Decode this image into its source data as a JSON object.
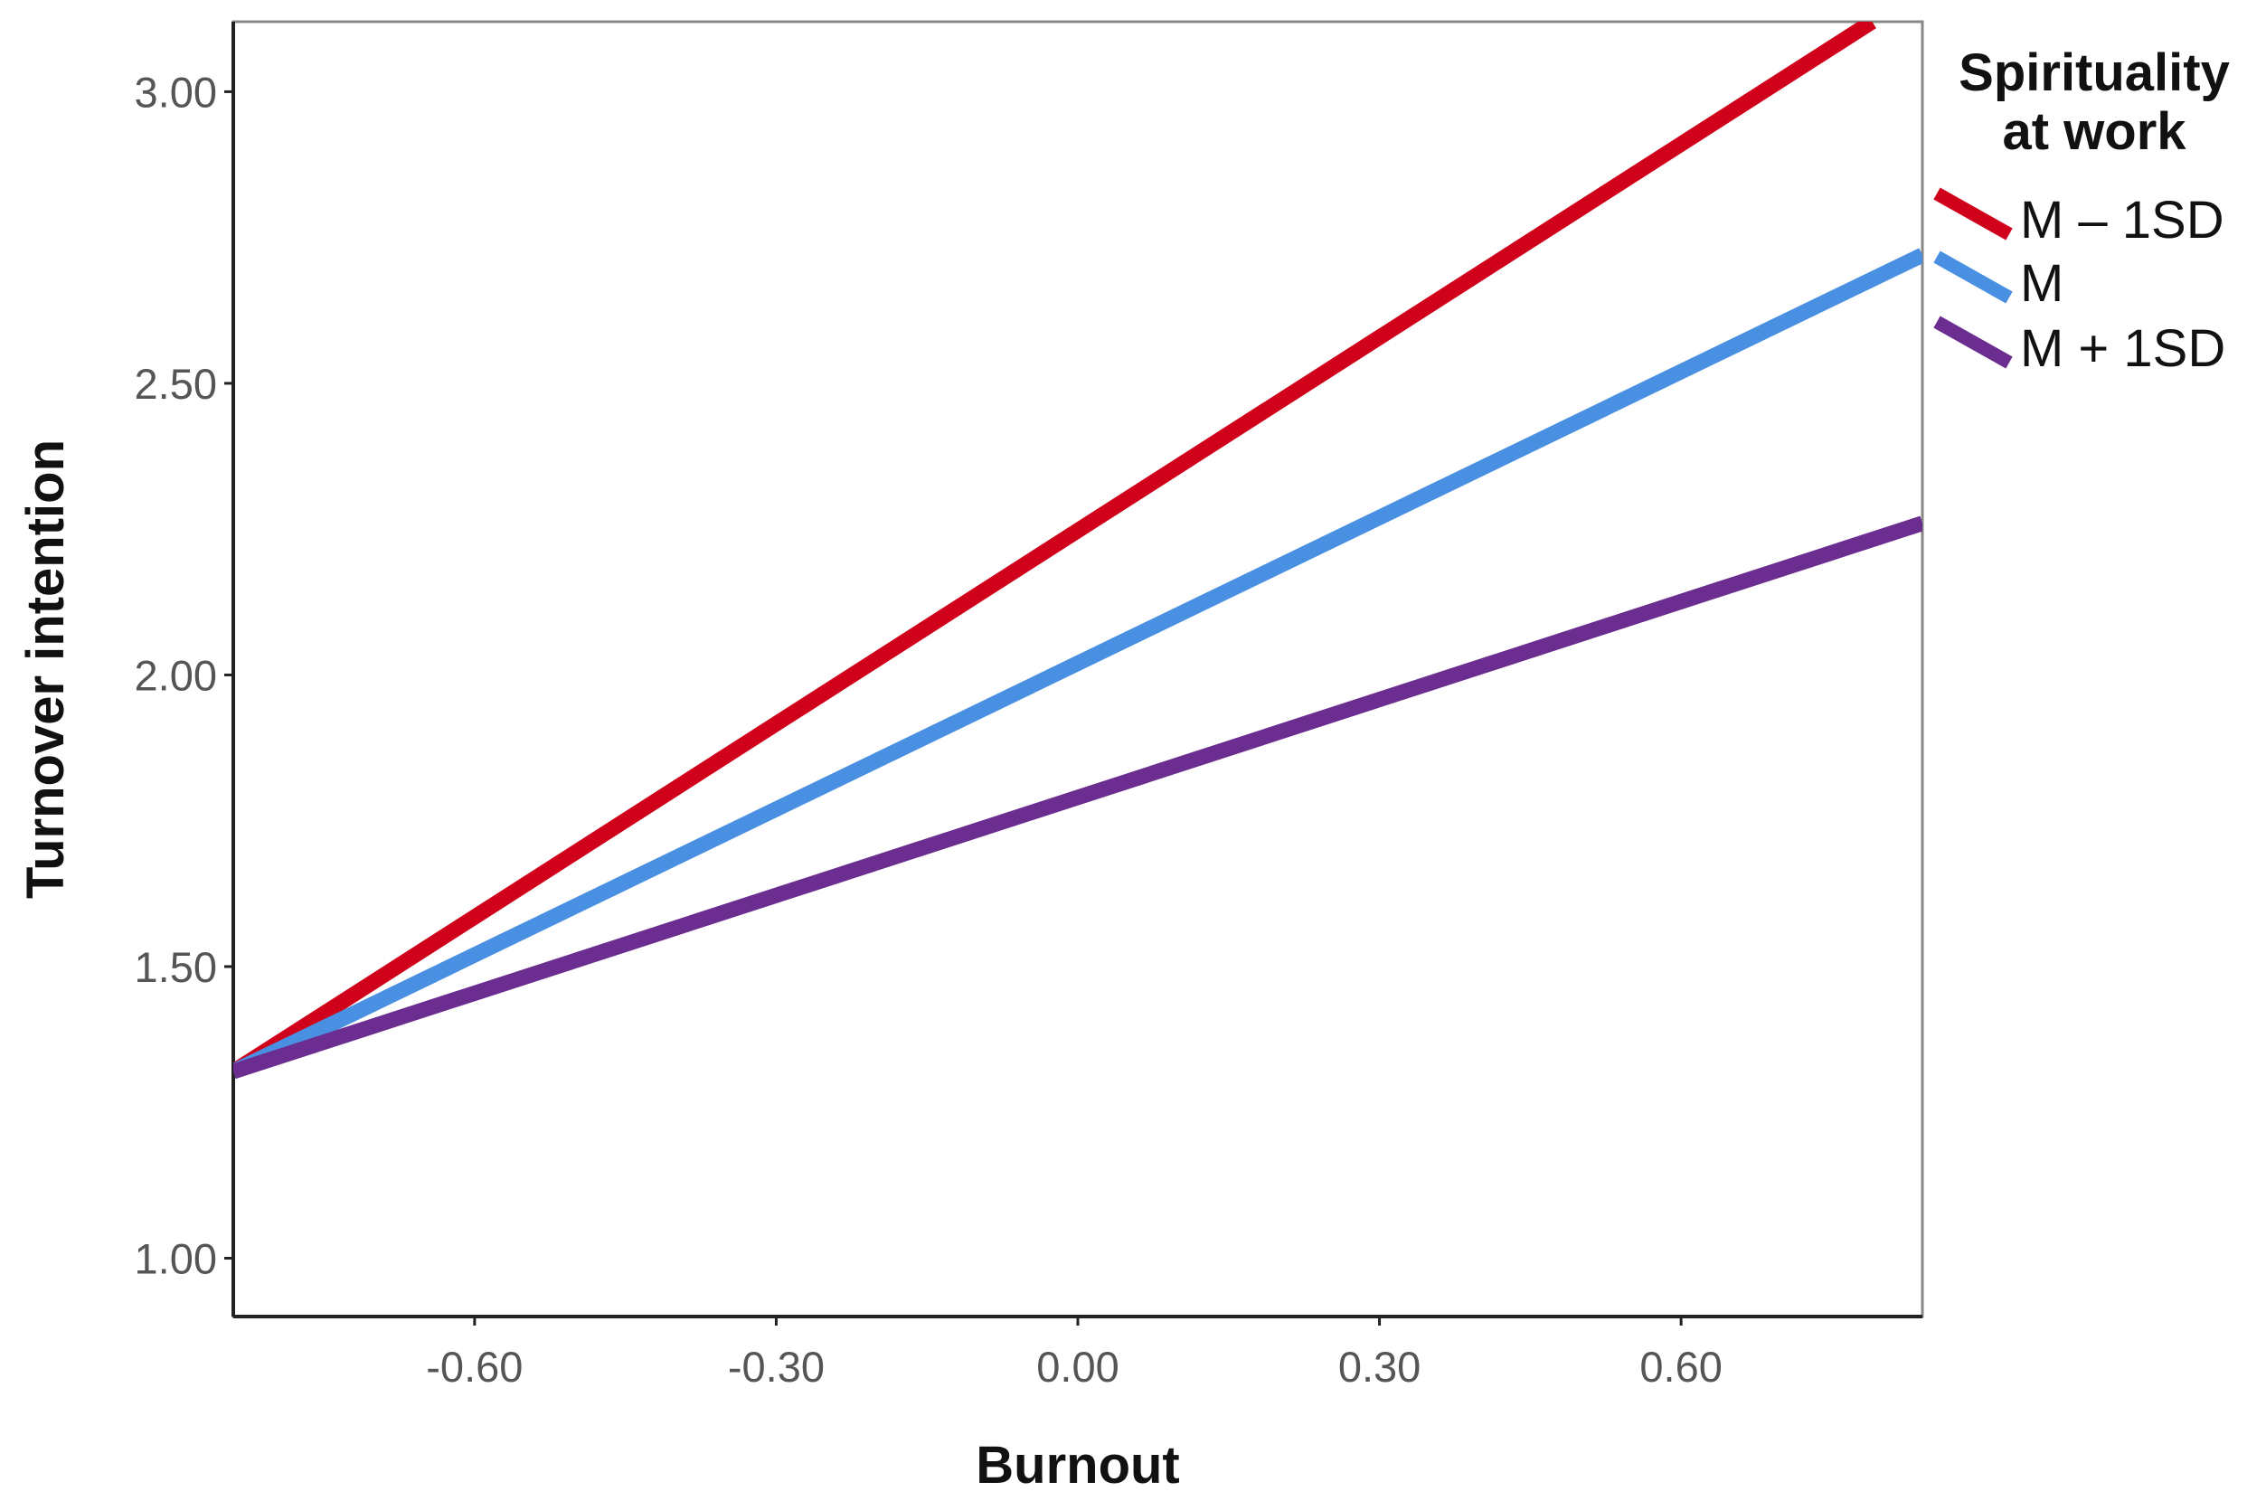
{
  "chart_data": {
    "type": "line",
    "xlabel": "Burnout",
    "ylabel": "Turnover intention",
    "xlim": [
      -0.84,
      0.84
    ],
    "ylim": [
      0.9,
      3.12
    ],
    "x_ticks": [
      "-0.60",
      "-0.30",
      "0.00",
      "0.30",
      "0.60"
    ],
    "x_tick_values": [
      -0.6,
      -0.3,
      0.0,
      0.3,
      0.6
    ],
    "y_ticks": [
      "1.00",
      "1.50",
      "2.00",
      "2.50",
      "3.00"
    ],
    "y_tick_values": [
      1.0,
      1.5,
      2.0,
      2.5,
      3.0
    ],
    "grid": false,
    "legend": {
      "title_lines": [
        "Spirituality",
        "at work"
      ],
      "placement": "right"
    },
    "series": [
      {
        "name": "M – 1SD",
        "color": "#d0021b",
        "x": [
          -0.84,
          0.79
        ],
        "y": [
          1.32,
          3.12
        ]
      },
      {
        "name": "M",
        "color": "#4a90e2",
        "x": [
          -0.84,
          0.84
        ],
        "y": [
          1.32,
          2.72
        ]
      },
      {
        "name": "M + 1SD",
        "color": "#6b2d8f",
        "x": [
          -0.84,
          0.84
        ],
        "y": [
          1.32,
          2.26
        ]
      }
    ]
  }
}
